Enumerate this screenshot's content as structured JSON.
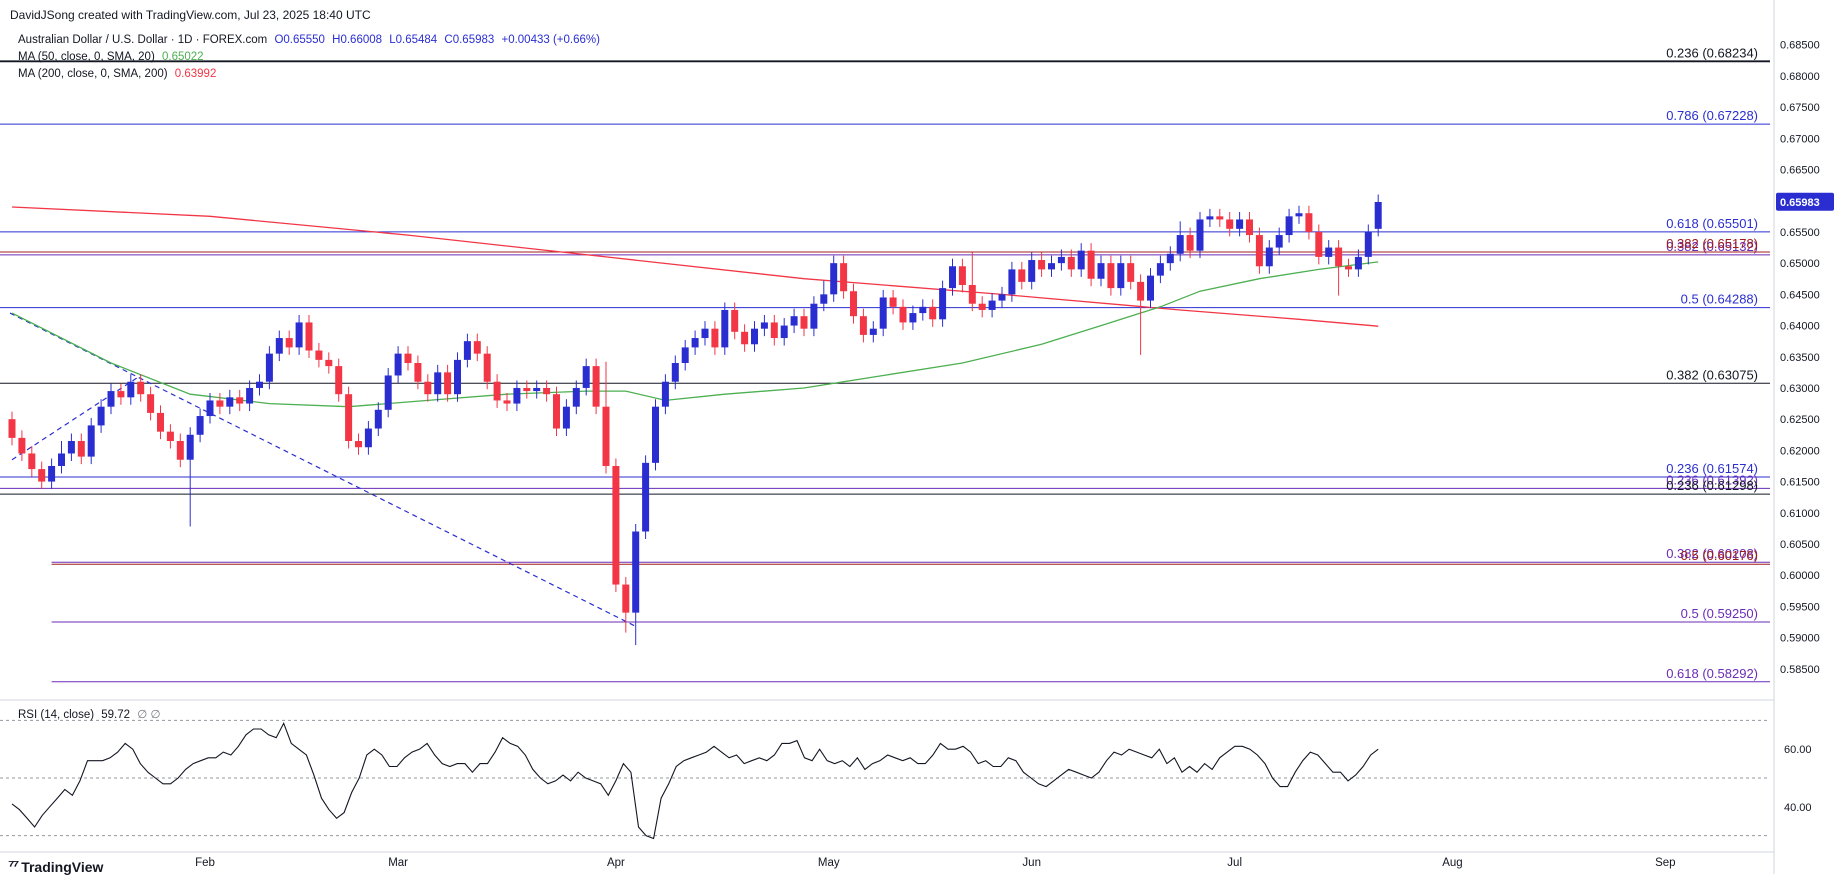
{
  "header": {
    "credit": "DavidJSong created with TradingView.com, Jul 23, 2025 18:40 UTC"
  },
  "legend": {
    "symbol": "Australian Dollar / U.S. Dollar · 1D · FOREX.com",
    "open": "O0.65550",
    "high": "H0.66008",
    "low": "L0.65484",
    "close": "C0.65983",
    "change": "+0.00433 (+0.66%)",
    "ma50_label": "MA (50, close, 0, SMA, 20)",
    "ma50_value": "0.65022",
    "ma50_color": "#4caf50",
    "ma200_label": "MA (200, close, 0, SMA, 200)",
    "ma200_value": "0.63992",
    "ma200_color": "#f23645"
  },
  "rsi_legend": {
    "label": "RSI (14, close)",
    "value": "59.72",
    "extra": "∅ ∅"
  },
  "footer": {
    "brand": "TradingView",
    "logo_icon": "tradingview-logo-icon"
  },
  "colors": {
    "up": "#2a2ed1",
    "down": "#f23645",
    "fib_blue": "#2a2ed1",
    "fib_purple": "#6a2bb8",
    "trend": "#2a2ed1",
    "rsi": "#131722"
  },
  "chart_data": {
    "type": "candlestick",
    "price_range": [
      0.58,
      0.688
    ],
    "y_ticks": [
      "0.68500",
      "0.68000",
      "0.67500",
      "0.67000",
      "0.66500",
      "0.66000",
      "0.65500",
      "0.65000",
      "0.64500",
      "0.64000",
      "0.63500",
      "0.63000",
      "0.62500",
      "0.62000",
      "0.61500",
      "0.61000",
      "0.60500",
      "0.60000",
      "0.59500",
      "0.59000",
      "0.58500"
    ],
    "x_labels": [
      {
        "label": "Feb",
        "index": 19.5
      },
      {
        "label": "Mar",
        "index": 39
      },
      {
        "label": "Apr",
        "index": 61
      },
      {
        "label": "May",
        "index": 82.5
      },
      {
        "label": "Jun",
        "index": 103
      },
      {
        "label": "Jul",
        "index": 123.5
      },
      {
        "label": "Aug",
        "index": 145.5
      },
      {
        "label": "Sep",
        "index": 167
      }
    ],
    "last_price": "0.65983",
    "fib_levels": [
      {
        "label": "0.236 (0.68234)",
        "value": 0.68234,
        "color": "#131722",
        "width": 1.8,
        "start": 0
      },
      {
        "label": "0.786 (0.67228)",
        "value": 0.67228,
        "color": "#2a2ed1",
        "width": 1,
        "start": 0
      },
      {
        "label": "0.618 (0.65501)",
        "value": 0.65501,
        "color": "#2a2ed1",
        "width": 1,
        "start": 0
      },
      {
        "label": "0.382 (0.65132)",
        "value": 0.65132,
        "color": "#6a2bb8",
        "width": 1,
        "start": 0
      },
      {
        "label": "0.382 (0.65178)",
        "value": 0.65178,
        "color": "#a01c1c",
        "width": 1,
        "start": 0
      },
      {
        "label": "0.5 (0.64288)",
        "value": 0.64288,
        "color": "#2a2ed1",
        "width": 1,
        "start": 0
      },
      {
        "label": "0.382 (0.63075)",
        "value": 0.63075,
        "color": "#131722",
        "width": 1,
        "start": 0
      },
      {
        "label": "0.236 (0.61574)",
        "value": 0.61574,
        "color": "#2a2ed1",
        "width": 1,
        "start": 0
      },
      {
        "label": "0.236 (0.61392)",
        "value": 0.61392,
        "color": "#6a2bb8",
        "width": 1,
        "start": 0
      },
      {
        "label": "0.236 (0.61298)",
        "value": 0.61298,
        "color": "#131722",
        "width": 1,
        "start": 0
      },
      {
        "label": "0.382 (0.60208)",
        "value": 0.60208,
        "color": "#6a2bb8",
        "width": 1,
        "start": 4
      },
      {
        "label": "0.5 (0.60176)",
        "value": 0.60176,
        "color": "#a01c1c",
        "width": 1,
        "start": 4
      },
      {
        "label": "0.5 (0.59250)",
        "value": 0.5925,
        "color": "#6a2bb8",
        "width": 1,
        "start": 4
      },
      {
        "label": "0.618 (0.58292)",
        "value": 0.58292,
        "color": "#6a2bb8",
        "width": 1,
        "start": 4
      }
    ],
    "closes": [
      0.622,
      0.6195,
      0.617,
      0.615,
      0.6175,
      0.6195,
      0.6215,
      0.619,
      0.624,
      0.627,
      0.6295,
      0.6285,
      0.631,
      0.629,
      0.626,
      0.623,
      0.6215,
      0.6185,
      0.6225,
      0.6255,
      0.628,
      0.627,
      0.6285,
      0.6275,
      0.63,
      0.631,
      0.6355,
      0.638,
      0.6365,
      0.6405,
      0.636,
      0.6345,
      0.6335,
      0.629,
      0.6215,
      0.6205,
      0.6235,
      0.6265,
      0.632,
      0.6355,
      0.634,
      0.631,
      0.629,
      0.6325,
      0.629,
      0.6345,
      0.6375,
      0.6355,
      0.631,
      0.628,
      0.6275,
      0.63,
      0.6295,
      0.63,
      0.629,
      0.6235,
      0.627,
      0.63,
      0.6335,
      0.627,
      0.6175,
      0.5985,
      0.594,
      0.607,
      0.618,
      0.627,
      0.631,
      0.634,
      0.6365,
      0.638,
      0.6395,
      0.6365,
      0.6425,
      0.639,
      0.637,
      0.6395,
      0.6405,
      0.638,
      0.64,
      0.6415,
      0.6395,
      0.6435,
      0.645,
      0.65,
      0.6455,
      0.6415,
      0.6385,
      0.6395,
      0.6445,
      0.643,
      0.6405,
      0.642,
      0.643,
      0.641,
      0.646,
      0.6495,
      0.6465,
      0.6435,
      0.6425,
      0.644,
      0.645,
      0.649,
      0.647,
      0.6505,
      0.649,
      0.65,
      0.651,
      0.649,
      0.652,
      0.6475,
      0.65,
      0.646,
      0.65,
      0.647,
      0.644,
      0.648,
      0.65,
      0.6515,
      0.6545,
      0.652,
      0.657,
      0.6575,
      0.657,
      0.6555,
      0.657,
      0.6545,
      0.6495,
      0.6525,
      0.6545,
      0.6575,
      0.658,
      0.655,
      0.651,
      0.6525,
      0.6495,
      0.649,
      0.651,
      0.655,
      0.6598
    ],
    "opens": [
      0.625,
      0.622,
      0.6195,
      0.617,
      0.615,
      0.6175,
      0.6195,
      0.6215,
      0.619,
      0.624,
      0.627,
      0.6295,
      0.6285,
      0.631,
      0.629,
      0.626,
      0.623,
      0.6215,
      0.6185,
      0.6225,
      0.6255,
      0.628,
      0.627,
      0.6285,
      0.6275,
      0.63,
      0.631,
      0.6355,
      0.638,
      0.6365,
      0.6405,
      0.636,
      0.6345,
      0.6335,
      0.629,
      0.6215,
      0.6205,
      0.6235,
      0.6265,
      0.632,
      0.6355,
      0.634,
      0.631,
      0.629,
      0.6325,
      0.629,
      0.6345,
      0.6375,
      0.6355,
      0.631,
      0.628,
      0.6275,
      0.63,
      0.6295,
      0.63,
      0.629,
      0.6235,
      0.627,
      0.63,
      0.6335,
      0.627,
      0.6175,
      0.5985,
      0.594,
      0.607,
      0.618,
      0.627,
      0.631,
      0.634,
      0.6365,
      0.638,
      0.6395,
      0.6365,
      0.6425,
      0.639,
      0.637,
      0.6395,
      0.6405,
      0.638,
      0.64,
      0.6415,
      0.6395,
      0.6435,
      0.645,
      0.65,
      0.6455,
      0.6415,
      0.6385,
      0.6395,
      0.6445,
      0.643,
      0.6405,
      0.642,
      0.643,
      0.641,
      0.646,
      0.6495,
      0.6465,
      0.6435,
      0.6425,
      0.644,
      0.645,
      0.649,
      0.647,
      0.6505,
      0.649,
      0.65,
      0.651,
      0.649,
      0.652,
      0.6475,
      0.65,
      0.646,
      0.65,
      0.647,
      0.644,
      0.648,
      0.65,
      0.6515,
      0.6545,
      0.652,
      0.657,
      0.6575,
      0.657,
      0.6555,
      0.657,
      0.6545,
      0.6495,
      0.6525,
      0.6545,
      0.6575,
      0.658,
      0.655,
      0.651,
      0.6525,
      0.6495,
      0.649,
      0.651,
      0.6555
    ],
    "highs_extra": {
      "5": 0.0008,
      "60": 0.006,
      "82": 0.001,
      "97": 0.004,
      "118": 0.001
    },
    "lows_extra": {
      "18": 0.0095,
      "62": 0.002,
      "63": 0.004,
      "114": 0.0075,
      "134": 0.0035
    },
    "ma50_points": [
      [
        0,
        0.642
      ],
      [
        10,
        0.634
      ],
      [
        18,
        0.629
      ],
      [
        26,
        0.6275
      ],
      [
        34,
        0.627
      ],
      [
        42,
        0.628
      ],
      [
        50,
        0.629
      ],
      [
        58,
        0.6295
      ],
      [
        62,
        0.6295
      ],
      [
        66,
        0.628
      ],
      [
        72,
        0.629
      ],
      [
        80,
        0.63
      ],
      [
        88,
        0.632
      ],
      [
        96,
        0.634
      ],
      [
        104,
        0.637
      ],
      [
        110,
        0.64
      ],
      [
        116,
        0.643
      ],
      [
        120,
        0.6455
      ],
      [
        126,
        0.6475
      ],
      [
        132,
        0.649
      ],
      [
        138,
        0.6502
      ]
    ],
    "ma200_points": [
      [
        0,
        0.659
      ],
      [
        20,
        0.6575
      ],
      [
        40,
        0.6545
      ],
      [
        60,
        0.651
      ],
      [
        80,
        0.6475
      ],
      [
        100,
        0.645
      ],
      [
        118,
        0.6425
      ],
      [
        130,
        0.641
      ],
      [
        138,
        0.6399
      ]
    ],
    "trendline": [
      [
        0,
        0.642
      ],
      [
        63,
        0.5918
      ]
    ],
    "trendline2": [
      [
        0,
        0.6185
      ],
      [
        13,
        0.632
      ]
    ],
    "rsi_range": [
      25,
      75
    ],
    "rsi_levels": [
      70,
      50,
      30
    ],
    "rsi_ticks": [
      "60.00",
      "40.00"
    ],
    "rsi_values": [
      41,
      39,
      36,
      33,
      37,
      40,
      43,
      46,
      44,
      49,
      56,
      56,
      56,
      57,
      59,
      62,
      60,
      55,
      52,
      50,
      48,
      48,
      50,
      53,
      55,
      56,
      57,
      57,
      59,
      58,
      61,
      65,
      67,
      67,
      65,
      64,
      69,
      62,
      60,
      58,
      51,
      43,
      39,
      36,
      38,
      45,
      50,
      58,
      60,
      58,
      54,
      54,
      57,
      59,
      60,
      62,
      58,
      55,
      54,
      55,
      55,
      52,
      55,
      55,
      59,
      64,
      62,
      61,
      58,
      53,
      50,
      48,
      49,
      51,
      49,
      52,
      50,
      49,
      48,
      44,
      49,
      55,
      52,
      33,
      30,
      29,
      43,
      48,
      54,
      56,
      57,
      58,
      59,
      61,
      59,
      57,
      58,
      55,
      56,
      57,
      56,
      58,
      62,
      62,
      63,
      57,
      56,
      60,
      56,
      55,
      56,
      54,
      57,
      53,
      55,
      56,
      58,
      57,
      56,
      57,
      55,
      55,
      58,
      62,
      60,
      60,
      61,
      59,
      55,
      56,
      54,
      54,
      57,
      56,
      52,
      50,
      48,
      47,
      49,
      51,
      53,
      52,
      51,
      50,
      52,
      56,
      59,
      58,
      60,
      59,
      58,
      57,
      60,
      55,
      57,
      52,
      54,
      52,
      55,
      53,
      57,
      59,
      61,
      61,
      60,
      58,
      55,
      50,
      47,
      47,
      52,
      56,
      59,
      58,
      55,
      52,
      52,
      49,
      51,
      54,
      58,
      60
    ]
  }
}
